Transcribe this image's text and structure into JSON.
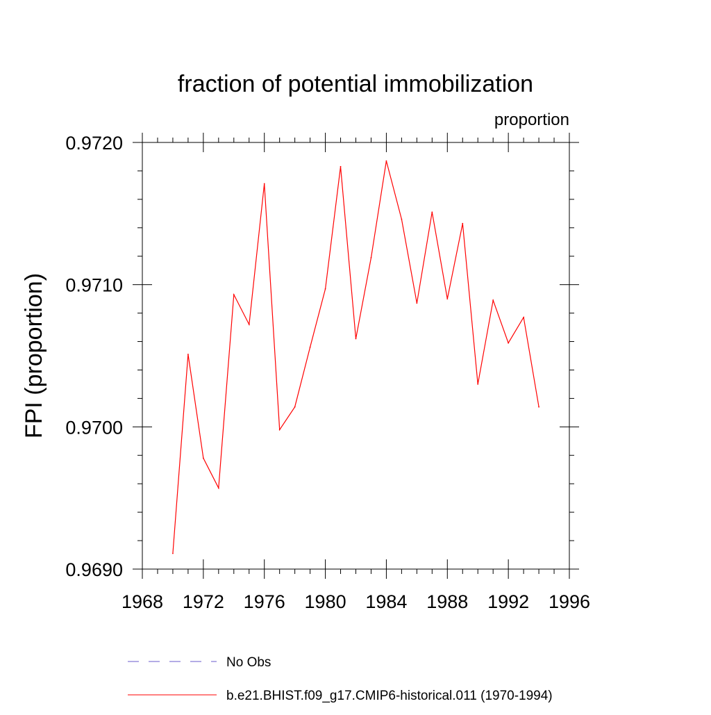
{
  "chart_data": {
    "type": "line",
    "title": "fraction of potential immobilization",
    "subtitle": "proportion",
    "xlabel": "",
    "ylabel": "FPI  (proportion)",
    "xlim": [
      1968,
      1996
    ],
    "ylim": [
      0.969,
      0.972
    ],
    "x_ticks": [
      1968,
      1972,
      1976,
      1980,
      1984,
      1988,
      1992,
      1996
    ],
    "x_tick_labels": [
      "1968",
      "1972",
      "1976",
      "1980",
      "1984",
      "1988",
      "1992",
      "1996"
    ],
    "y_ticks": [
      0.969,
      0.97,
      0.971,
      0.972
    ],
    "y_tick_labels": [
      "0.9690",
      "0.9700",
      "0.9710",
      "0.9720"
    ],
    "grid": false,
    "legend_position": "bottom",
    "series": [
      {
        "name": "b.e21.BHIST.f09_g17.CMIP6-historical.011 (1970-1994)",
        "color": "#ff0000",
        "dash": "solid",
        "x": [
          1970,
          1971,
          1972,
          1973,
          1974,
          1975,
          1976,
          1977,
          1978,
          1979,
          1980,
          1981,
          1982,
          1983,
          1984,
          1985,
          1986,
          1987,
          1988,
          1989,
          1990,
          1991,
          1992,
          1993,
          1994
        ],
        "y": [
          0.96911,
          0.97051,
          0.96978,
          0.96957,
          0.97093,
          0.97072,
          0.97171,
          0.96998,
          0.97014,
          0.97056,
          0.97097,
          0.97183,
          0.97062,
          0.97119,
          0.97187,
          0.97146,
          0.97087,
          0.97151,
          0.9709,
          0.97143,
          0.9703,
          0.97089,
          0.97059,
          0.97077,
          0.97014
        ]
      }
    ],
    "legend": [
      {
        "label": "No Obs",
        "color": "#6a5acd",
        "dash": "dashed"
      },
      {
        "label": "b.e21.BHIST.f09_g17.CMIP6-historical.011 (1970-1994)",
        "color": "#ff0000",
        "dash": "solid"
      }
    ]
  }
}
